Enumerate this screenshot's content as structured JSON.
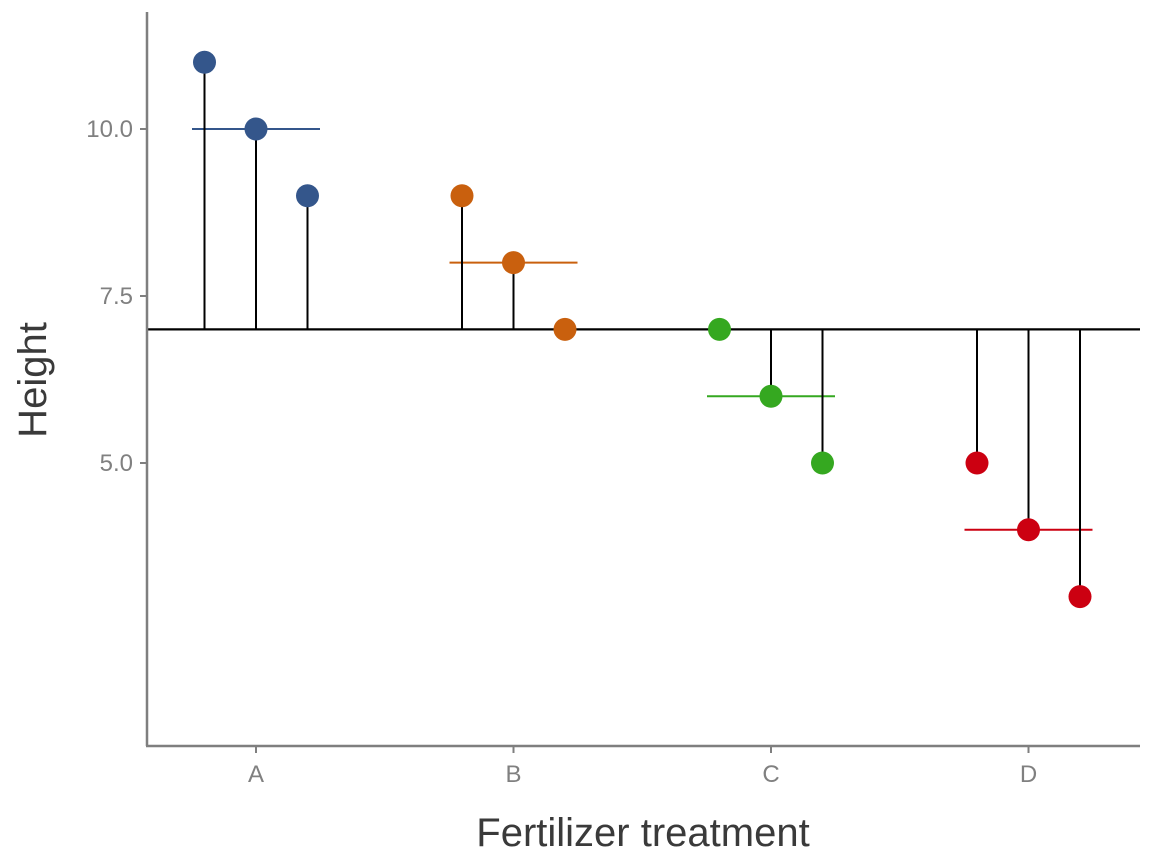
{
  "chart_data": {
    "type": "scatter",
    "title": "",
    "xlabel": "Fertilizer treatment",
    "ylabel": "Height",
    "categories": [
      "A",
      "B",
      "C",
      "D"
    ],
    "yticks": [
      "5.0",
      "7.5",
      "10.0"
    ],
    "ylim": [
      2.6,
      11.4
    ],
    "grand_mean": 7,
    "grid": false,
    "legend": "none",
    "groups": [
      {
        "category": "A",
        "color": "#34568b",
        "values": [
          11,
          10,
          9
        ],
        "mean": 10
      },
      {
        "category": "B",
        "color": "#c9600e",
        "values": [
          9,
          8,
          7
        ],
        "mean": 8
      },
      {
        "category": "C",
        "color": "#35a820",
        "values": [
          7,
          6,
          5
        ],
        "mean": 6
      },
      {
        "category": "D",
        "color": "#cc0011",
        "values": [
          5,
          4,
          3
        ],
        "mean": 4
      }
    ]
  }
}
